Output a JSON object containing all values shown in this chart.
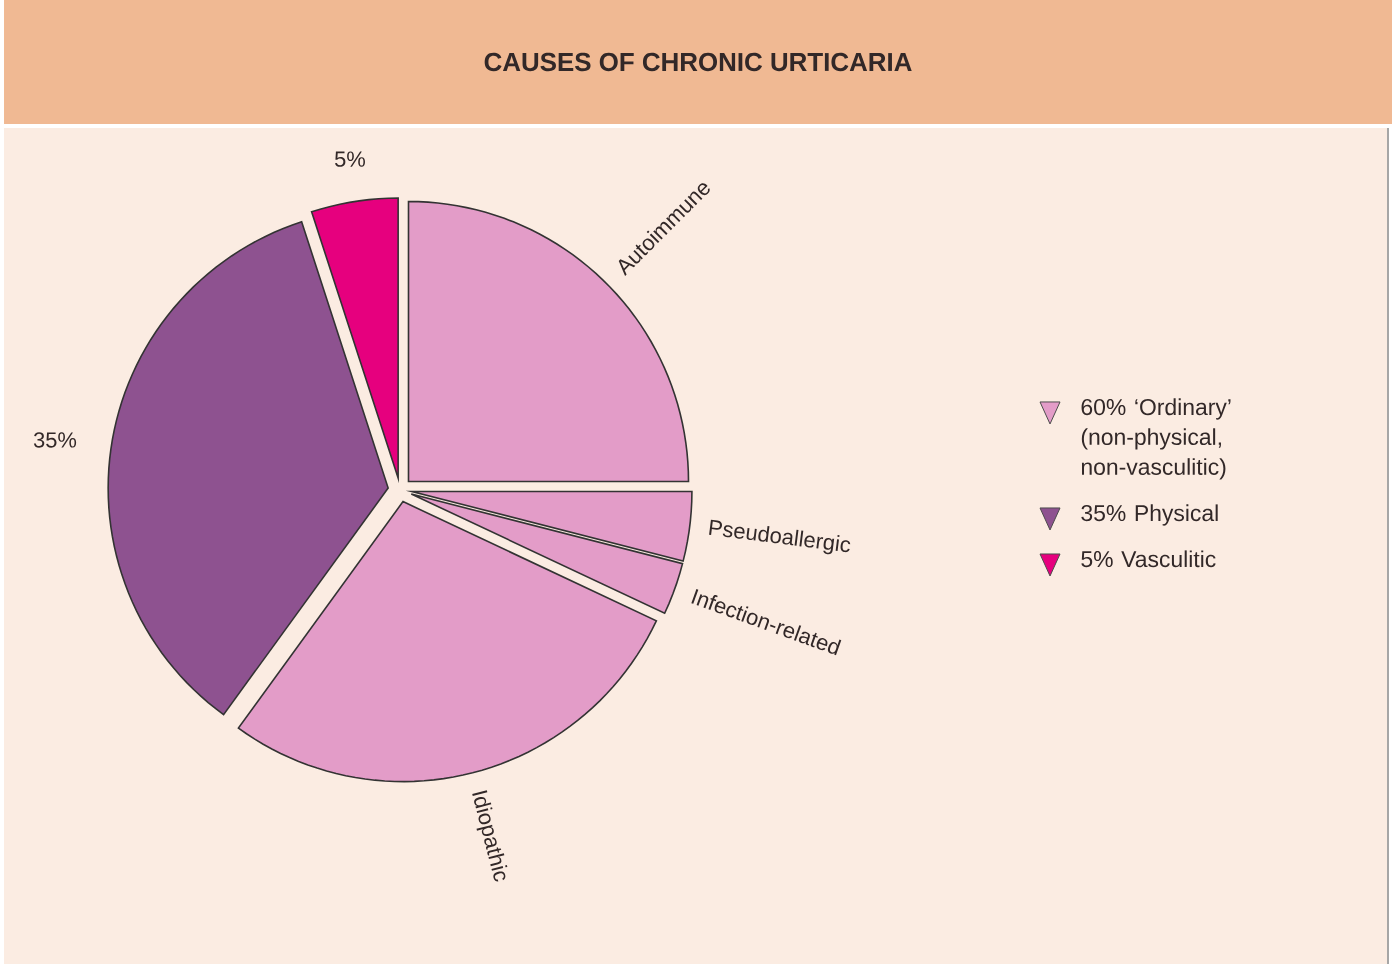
{
  "chart_data": {
    "type": "pie",
    "title": "CAUSES OF CHRONIC URTICARIA",
    "categories": [
      "Autoimmune",
      "Pseudoallergic",
      "Infection-related",
      "Idiopathic",
      "35% Physical",
      "5% Vasculitic"
    ],
    "values": [
      25,
      4,
      3,
      28,
      35,
      5
    ],
    "colors": [
      "#e39cc8",
      "#e39cc8",
      "#e39cc8",
      "#e39cc8",
      "#8e5290",
      "#e6007e"
    ],
    "value_labels": [
      null,
      null,
      null,
      null,
      "35%",
      "5%"
    ],
    "annotations": [
      "60% ‘Ordinary’ (non-physical, non-vasculitic)"
    ],
    "legend": "right"
  }
}
